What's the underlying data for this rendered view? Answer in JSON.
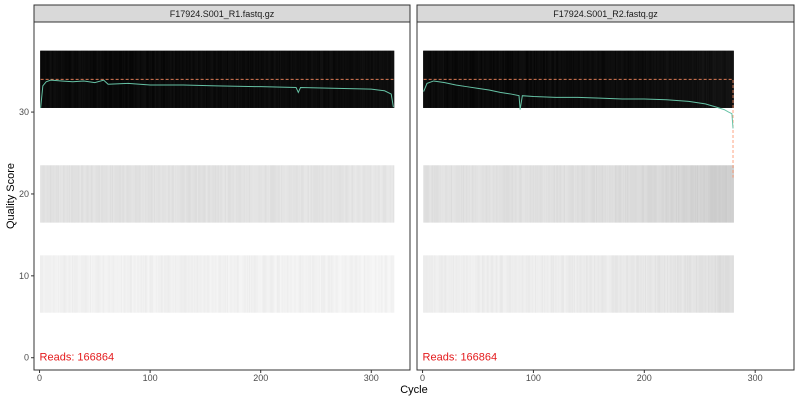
{
  "chart_data": {
    "type": "heatmap",
    "xlabel": "Cycle",
    "ylabel": "Quality Score",
    "x_ticks": [
      0,
      100,
      200,
      300
    ],
    "y_ticks": [
      0,
      10,
      20,
      30
    ],
    "xlim": [
      -5,
      335
    ],
    "ylim": [
      -1.5,
      41
    ],
    "colors": {
      "mean_line": "#66c2a5",
      "median_line": "#fc8d62",
      "reads_text": "#e41a1c",
      "strip_fill": "#d9d9d9",
      "panel_border": "#333333"
    },
    "panels": [
      {
        "title": "F17924.S001_R1.fastq.gz",
        "reads_label": "Reads:",
        "reads_value": "166864",
        "n_cycles": 320,
        "quality_bands": [
          {
            "q_low": 30.5,
            "q_high": 37.5,
            "shade_start": 0.04,
            "shade_end": 0.05
          },
          {
            "q_low": 16.5,
            "q_high": 23.5,
            "shade_start": 0.88,
            "shade_end": 0.9
          },
          {
            "q_low": 5.5,
            "q_high": 12.5,
            "shade_start": 0.94,
            "shade_end": 0.95
          }
        ],
        "mean_quality": [
          {
            "cycle": 1,
            "q": 30.5
          },
          {
            "cycle": 3,
            "q": 33.2
          },
          {
            "cycle": 6,
            "q": 33.7
          },
          {
            "cycle": 10,
            "q": 33.9
          },
          {
            "cycle": 20,
            "q": 33.8
          },
          {
            "cycle": 30,
            "q": 33.7
          },
          {
            "cycle": 40,
            "q": 33.8
          },
          {
            "cycle": 50,
            "q": 33.6
          },
          {
            "cycle": 58,
            "q": 33.9
          },
          {
            "cycle": 62,
            "q": 33.4
          },
          {
            "cycle": 80,
            "q": 33.5
          },
          {
            "cycle": 100,
            "q": 33.3
          },
          {
            "cycle": 130,
            "q": 33.3
          },
          {
            "cycle": 160,
            "q": 33.2
          },
          {
            "cycle": 200,
            "q": 33.1
          },
          {
            "cycle": 232,
            "q": 33.0
          },
          {
            "cycle": 234,
            "q": 32.4
          },
          {
            "cycle": 236,
            "q": 33.0
          },
          {
            "cycle": 270,
            "q": 32.9
          },
          {
            "cycle": 300,
            "q": 32.8
          },
          {
            "cycle": 312,
            "q": 32.6
          },
          {
            "cycle": 318,
            "q": 32.2
          },
          {
            "cycle": 320,
            "q": 30.6
          }
        ],
        "median_quality": [
          {
            "cycle": 1,
            "q": 34
          },
          {
            "cycle": 320,
            "q": 34
          }
        ]
      },
      {
        "title": "F17924.S001_R2.fastq.gz",
        "reads_label": "Reads:",
        "reads_value": "166864",
        "n_cycles": 280,
        "quality_bands": [
          {
            "q_low": 30.5,
            "q_high": 37.5,
            "shade_start": 0.04,
            "shade_end": 0.07
          },
          {
            "q_low": 16.5,
            "q_high": 23.5,
            "shade_start": 0.88,
            "shade_end": 0.8
          },
          {
            "q_low": 5.5,
            "q_high": 12.5,
            "shade_start": 0.93,
            "shade_end": 0.86
          }
        ],
        "mean_quality": [
          {
            "cycle": 1,
            "q": 32.5
          },
          {
            "cycle": 4,
            "q": 33.5
          },
          {
            "cycle": 10,
            "q": 33.8
          },
          {
            "cycle": 20,
            "q": 33.6
          },
          {
            "cycle": 30,
            "q": 33.3
          },
          {
            "cycle": 40,
            "q": 33.1
          },
          {
            "cycle": 50,
            "q": 32.9
          },
          {
            "cycle": 60,
            "q": 32.7
          },
          {
            "cycle": 70,
            "q": 32.4
          },
          {
            "cycle": 80,
            "q": 32.2
          },
          {
            "cycle": 87,
            "q": 32.0
          },
          {
            "cycle": 88,
            "q": 30.3
          },
          {
            "cycle": 90,
            "q": 32.0
          },
          {
            "cycle": 100,
            "q": 31.9
          },
          {
            "cycle": 120,
            "q": 31.8
          },
          {
            "cycle": 140,
            "q": 31.8
          },
          {
            "cycle": 160,
            "q": 31.7
          },
          {
            "cycle": 180,
            "q": 31.6
          },
          {
            "cycle": 200,
            "q": 31.6
          },
          {
            "cycle": 220,
            "q": 31.5
          },
          {
            "cycle": 240,
            "q": 31.3
          },
          {
            "cycle": 255,
            "q": 31.0
          },
          {
            "cycle": 265,
            "q": 30.6
          },
          {
            "cycle": 272,
            "q": 30.3
          },
          {
            "cycle": 276,
            "q": 30.0
          },
          {
            "cycle": 279,
            "q": 29.8
          },
          {
            "cycle": 280,
            "q": 28.0
          }
        ],
        "median_quality": [
          {
            "cycle": 1,
            "q": 34
          },
          {
            "cycle": 279,
            "q": 34
          },
          {
            "cycle": 280,
            "q": 34
          },
          {
            "cycle": 280,
            "q": 22
          }
        ]
      }
    ]
  }
}
